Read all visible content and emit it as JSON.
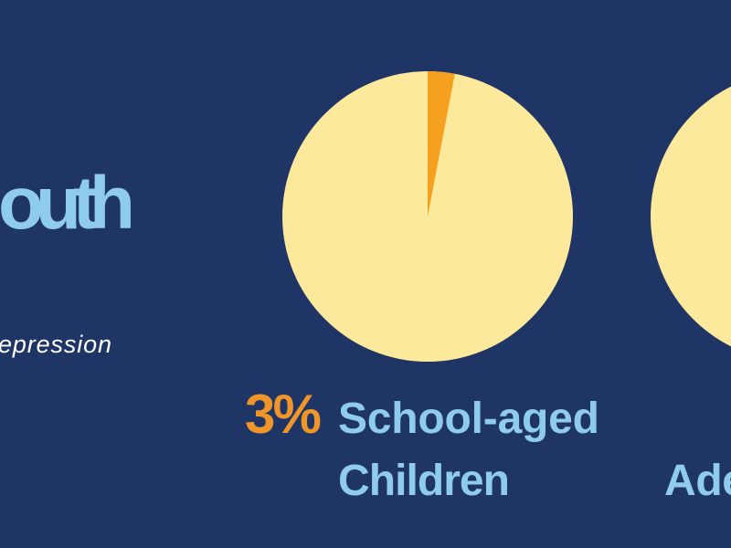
{
  "title_fragment": "outh",
  "subtitle_fragment": "epression",
  "pies": [
    {
      "value": 3,
      "value_label": "3%",
      "label_lines": [
        "School-aged",
        "Children"
      ],
      "slice_color": "#f5a11f",
      "rest_color": "#fde99b"
    },
    {
      "label_lines": [
        "Ade"
      ],
      "rest_color": "#fde99b"
    }
  ]
}
